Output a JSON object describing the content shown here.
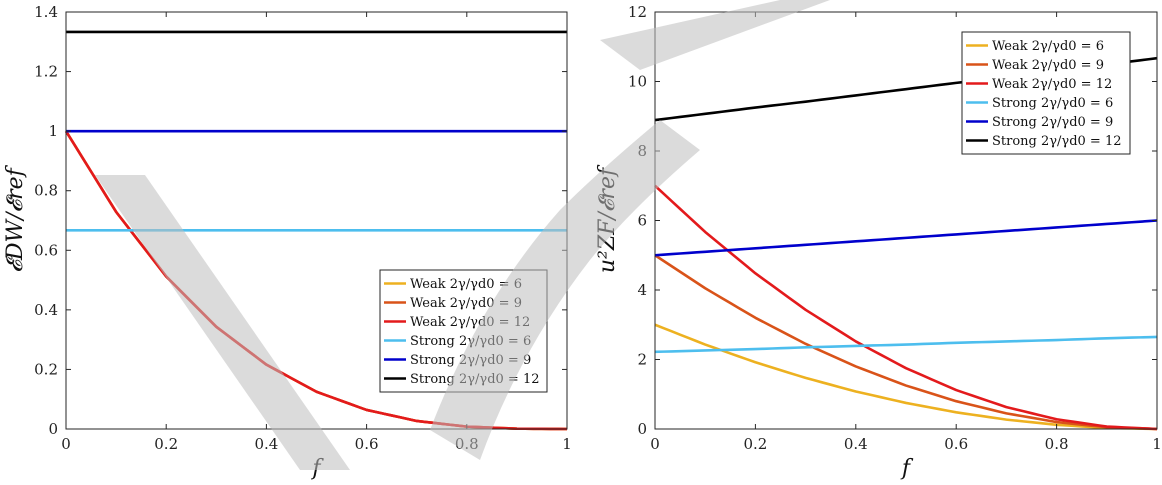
{
  "chart_data": [
    {
      "type": "line",
      "title": "",
      "xlabel": "f",
      "ylabel": "𝓔DW/𝓔ref",
      "xlim": [
        0,
        1
      ],
      "ylim": [
        0,
        1.4
      ],
      "xticks": [
        0,
        0.2,
        0.4,
        0.6,
        0.8,
        1
      ],
      "xtick_labels": [
        "0",
        "0.2",
        "0.4",
        "0.6",
        "0.8",
        "1"
      ],
      "yticks": [
        0,
        0.2,
        0.4,
        0.6,
        0.8,
        1,
        1.2,
        1.4
      ],
      "ytick_labels": [
        "0",
        "0.2",
        "0.4",
        "0.6",
        "0.8",
        "1",
        "1.2",
        "1.4"
      ],
      "grid": false,
      "legend_position": "bottom-right",
      "x": [
        0,
        0.1,
        0.2,
        0.3,
        0.4,
        0.5,
        0.6,
        0.7,
        0.8,
        0.9,
        1.0
      ],
      "series": [
        {
          "name": "Weak 2γ/γd0 = 6",
          "color": "#EDB120",
          "values": [
            1,
            0.729,
            0.512,
            0.343,
            0.216,
            0.125,
            0.064,
            0.027,
            0.008,
            0.001,
            0
          ]
        },
        {
          "name": "Weak 2γ/γd0 = 9",
          "color": "#D95319",
          "values": [
            1,
            0.729,
            0.512,
            0.343,
            0.216,
            0.125,
            0.064,
            0.027,
            0.008,
            0.001,
            0
          ]
        },
        {
          "name": "Weak 2γ/γd0 = 12",
          "color": "#E31A1C",
          "values": [
            1,
            0.729,
            0.512,
            0.343,
            0.216,
            0.125,
            0.064,
            0.027,
            0.008,
            0.001,
            0
          ]
        },
        {
          "name": "Strong 2γ/γd0 = 6",
          "color": "#4DBEEE",
          "values": [
            0.667,
            0.667,
            0.667,
            0.667,
            0.667,
            0.667,
            0.667,
            0.667,
            0.667,
            0.667,
            0.667
          ]
        },
        {
          "name": "Strong 2γ/γd0 = 9",
          "color": "#0000CC",
          "values": [
            1,
            1,
            1,
            1,
            1,
            1,
            1,
            1,
            1,
            1,
            1
          ]
        },
        {
          "name": "Strong 2γ/γd0 = 12",
          "color": "#000000",
          "values": [
            1.333,
            1.333,
            1.333,
            1.333,
            1.333,
            1.333,
            1.333,
            1.333,
            1.333,
            1.333,
            1.333
          ]
        }
      ]
    },
    {
      "type": "line",
      "title": "",
      "xlabel": "f",
      "ylabel": "u²ZF/𝓔ref",
      "xlim": [
        0,
        1
      ],
      "ylim": [
        0,
        12
      ],
      "xticks": [
        0,
        0.2,
        0.4,
        0.6,
        0.8,
        1
      ],
      "xtick_labels": [
        "0",
        "0.2",
        "0.4",
        "0.6",
        "0.8",
        "1"
      ],
      "yticks": [
        0,
        2,
        4,
        6,
        8,
        10,
        12
      ],
      "ytick_labels": [
        "0",
        "2",
        "4",
        "6",
        "8",
        "10",
        "12"
      ],
      "grid": false,
      "legend_position": "top-right",
      "x": [
        0,
        0.1,
        0.2,
        0.3,
        0.4,
        0.5,
        0.6,
        0.7,
        0.8,
        0.9,
        1.0
      ],
      "series": [
        {
          "name": "Weak 2γ/γd0 = 6",
          "color": "#EDB120",
          "values": [
            3,
            2.43,
            1.92,
            1.47,
            1.08,
            0.75,
            0.48,
            0.27,
            0.12,
            0.03,
            0
          ]
        },
        {
          "name": "Weak 2γ/γd0 = 9",
          "color": "#D95319",
          "values": [
            5,
            4.05,
            3.2,
            2.45,
            1.8,
            1.25,
            0.8,
            0.45,
            0.2,
            0.05,
            0
          ]
        },
        {
          "name": "Weak 2γ/γd0 = 12",
          "color": "#E31A1C",
          "values": [
            7,
            5.67,
            4.48,
            3.43,
            2.52,
            1.75,
            1.12,
            0.63,
            0.28,
            0.07,
            0
          ]
        },
        {
          "name": "Strong 2γ/γd0 = 6",
          "color": "#4DBEEE",
          "values": [
            2.22,
            2.26,
            2.3,
            2.35,
            2.39,
            2.43,
            2.48,
            2.52,
            2.56,
            2.61,
            2.65
          ]
        },
        {
          "name": "Strong 2γ/γd0 = 9",
          "color": "#0000CC",
          "values": [
            5,
            5.1,
            5.2,
            5.3,
            5.4,
            5.5,
            5.6,
            5.7,
            5.8,
            5.9,
            6
          ]
        },
        {
          "name": "Strong 2γ/γd0 = 12",
          "color": "#000000",
          "values": [
            8.89,
            9.07,
            9.25,
            9.42,
            9.6,
            9.78,
            9.96,
            10.13,
            10.31,
            10.49,
            10.67
          ]
        }
      ]
    }
  ]
}
